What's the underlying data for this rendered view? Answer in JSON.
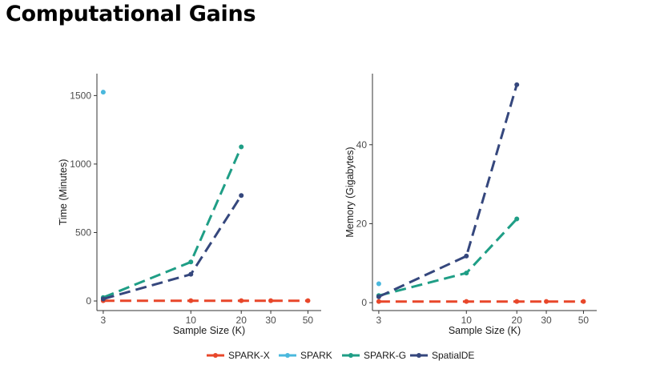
{
  "title": "Computational Gains",
  "chart_data": [
    {
      "type": "line",
      "xlabel": "Sample Size (K)",
      "ylabel": "Time (Minutes)",
      "x_scale": "log",
      "x_ticks": [
        3,
        10,
        20,
        30,
        50
      ],
      "y_ticks": [
        0,
        500,
        1000,
        1500
      ],
      "xlim": [
        2.75,
        60
      ],
      "ylim": [
        -70,
        1660
      ],
      "grid": false,
      "series": [
        {
          "name": "SPARK-X",
          "x": [
            3,
            10,
            20,
            30,
            50
          ],
          "y": [
            2,
            2,
            2,
            2,
            2
          ]
        },
        {
          "name": "SPARK",
          "x": [
            3
          ],
          "y": [
            1525
          ]
        },
        {
          "name": "SPARK-G",
          "x": [
            3,
            10,
            20
          ],
          "y": [
            25,
            285,
            1125
          ]
        },
        {
          "name": "SpatialDE",
          "x": [
            3,
            10,
            20
          ],
          "y": [
            15,
            195,
            770
          ]
        }
      ]
    },
    {
      "type": "line",
      "xlabel": "Sample Size (K)",
      "ylabel": "Memory (Gigabytes)",
      "x_scale": "log",
      "x_ticks": [
        3,
        10,
        20,
        30,
        50
      ],
      "y_ticks": [
        0,
        20,
        40
      ],
      "xlim": [
        2.75,
        60
      ],
      "ylim": [
        -2,
        58
      ],
      "grid": false,
      "series": [
        {
          "name": "SPARK-X",
          "x": [
            3,
            10,
            20,
            30,
            50
          ],
          "y": [
            0.3,
            0.3,
            0.3,
            0.3,
            0.3
          ]
        },
        {
          "name": "SPARK",
          "x": [
            3
          ],
          "y": [
            4.8
          ]
        },
        {
          "name": "SPARK-G",
          "x": [
            3,
            10,
            20
          ],
          "y": [
            1.8,
            7.5,
            21.2
          ]
        },
        {
          "name": "SpatialDE",
          "x": [
            3,
            10,
            20
          ],
          "y": [
            1.5,
            11.8,
            55.2
          ]
        }
      ]
    }
  ],
  "legend": {
    "position": "bottom",
    "items": [
      {
        "label": "SPARK-X",
        "color": "#e8472a"
      },
      {
        "label": "SPARK",
        "color": "#4ab8dd"
      },
      {
        "label": "SPARK-G",
        "color": "#1f9e86"
      },
      {
        "label": "SpatialDE",
        "color": "#35477d"
      }
    ]
  }
}
